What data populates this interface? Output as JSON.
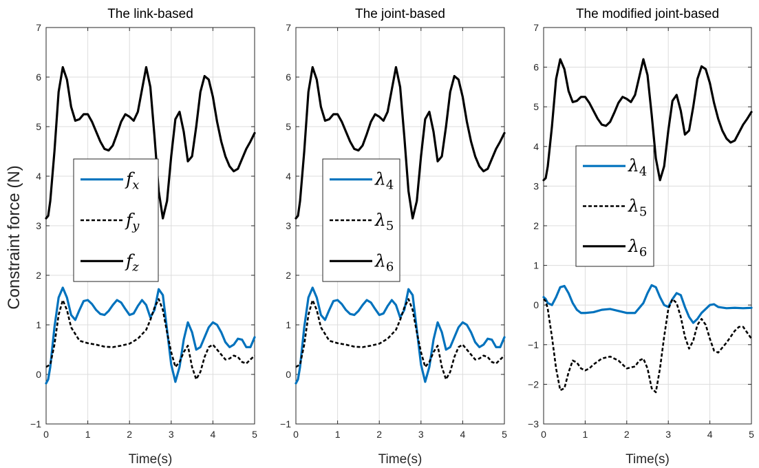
{
  "figure": {
    "ylabel": "Constraint force (N)",
    "colors": {
      "blue": "#0072BD",
      "black": "#000000",
      "grid": "#dcdcdc"
    }
  },
  "chart_data": [
    {
      "type": "line",
      "title": "The link-based",
      "xlabel": "Time(s)",
      "ylabel": "Constraint force (N)",
      "xlim": [
        0,
        5
      ],
      "ylim": [
        -1,
        7
      ],
      "xticks": [
        "0",
        "1",
        "2",
        "3",
        "4",
        "5"
      ],
      "yticks": [
        "−1",
        "0",
        "1",
        "2",
        "3",
        "4",
        "5",
        "6",
        "7"
      ],
      "grid": true,
      "legend_position": "center-left",
      "series": [
        {
          "name": "f_x",
          "color": "#0072BD",
          "style": "solid",
          "x": [
            0,
            0.05,
            0.1,
            0.2,
            0.3,
            0.4,
            0.5,
            0.6,
            0.7,
            0.8,
            0.9,
            1.0,
            1.1,
            1.2,
            1.3,
            1.4,
            1.5,
            1.6,
            1.7,
            1.8,
            1.9,
            2.0,
            2.1,
            2.2,
            2.3,
            2.4,
            2.5,
            2.6,
            2.7,
            2.8,
            2.9,
            3.0,
            3.1,
            3.2,
            3.3,
            3.4,
            3.5,
            3.6,
            3.7,
            3.8,
            3.9,
            4.0,
            4.1,
            4.2,
            4.3,
            4.4,
            4.5,
            4.6,
            4.7,
            4.8,
            4.9,
            5.0
          ],
          "y": [
            -0.18,
            -0.1,
            0.15,
            0.95,
            1.55,
            1.75,
            1.55,
            1.2,
            1.1,
            1.3,
            1.48,
            1.5,
            1.42,
            1.3,
            1.22,
            1.2,
            1.28,
            1.4,
            1.5,
            1.45,
            1.32,
            1.2,
            1.23,
            1.38,
            1.5,
            1.4,
            1.15,
            1.3,
            1.72,
            1.6,
            0.9,
            0.2,
            -0.15,
            0.15,
            0.7,
            1.05,
            0.85,
            0.5,
            0.55,
            0.75,
            0.95,
            1.05,
            1.0,
            0.85,
            0.65,
            0.55,
            0.6,
            0.72,
            0.7,
            0.55,
            0.55,
            0.75
          ]
        },
        {
          "name": "f_y",
          "color": "#000000",
          "style": "dashed",
          "x": [
            0,
            0.1,
            0.2,
            0.3,
            0.4,
            0.5,
            0.6,
            0.8,
            1.0,
            1.2,
            1.4,
            1.6,
            1.8,
            2.0,
            2.2,
            2.4,
            2.5,
            2.6,
            2.7,
            2.8,
            2.9,
            3.0,
            3.1,
            3.2,
            3.3,
            3.4,
            3.5,
            3.6,
            3.7,
            3.8,
            3.9,
            4.0,
            4.1,
            4.2,
            4.3,
            4.4,
            4.5,
            4.6,
            4.7,
            4.8,
            4.9,
            5.0
          ],
          "y": [
            0.15,
            0.2,
            0.6,
            1.2,
            1.5,
            1.3,
            0.95,
            0.68,
            0.63,
            0.6,
            0.56,
            0.55,
            0.58,
            0.62,
            0.72,
            0.9,
            1.1,
            1.35,
            1.52,
            1.3,
            0.85,
            0.45,
            0.15,
            0.25,
            0.45,
            0.58,
            0.15,
            -0.1,
            0.05,
            0.35,
            0.55,
            0.6,
            0.5,
            0.4,
            0.3,
            0.32,
            0.38,
            0.35,
            0.25,
            0.22,
            0.3,
            0.38
          ]
        },
        {
          "name": "f_z",
          "color": "#000000",
          "style": "solid",
          "x": [
            0,
            0.05,
            0.1,
            0.2,
            0.3,
            0.4,
            0.5,
            0.6,
            0.7,
            0.8,
            0.9,
            1.0,
            1.1,
            1.2,
            1.3,
            1.4,
            1.5,
            1.6,
            1.7,
            1.8,
            1.9,
            2.0,
            2.1,
            2.2,
            2.3,
            2.4,
            2.5,
            2.6,
            2.7,
            2.8,
            2.9,
            3.0,
            3.1,
            3.2,
            3.3,
            3.4,
            3.5,
            3.6,
            3.7,
            3.8,
            3.9,
            4.0,
            4.1,
            4.2,
            4.3,
            4.4,
            4.5,
            4.6,
            4.7,
            4.8,
            4.9,
            5.0
          ],
          "y": [
            3.15,
            3.2,
            3.5,
            4.5,
            5.7,
            6.2,
            5.95,
            5.4,
            5.12,
            5.15,
            5.25,
            5.25,
            5.1,
            4.9,
            4.7,
            4.55,
            4.52,
            4.62,
            4.85,
            5.1,
            5.25,
            5.2,
            5.12,
            5.3,
            5.75,
            6.2,
            5.8,
            4.8,
            3.7,
            3.15,
            3.5,
            4.4,
            5.15,
            5.3,
            4.9,
            4.3,
            4.4,
            5.0,
            5.7,
            6.02,
            5.95,
            5.6,
            5.1,
            4.7,
            4.4,
            4.2,
            4.1,
            4.15,
            4.35,
            4.55,
            4.7,
            4.87
          ]
        }
      ]
    },
    {
      "type": "line",
      "title": "The joint-based",
      "xlabel": "Time(s)",
      "xlim": [
        0,
        5
      ],
      "ylim": [
        -1,
        7
      ],
      "xticks": [
        "0",
        "1",
        "2",
        "3",
        "4",
        "5"
      ],
      "yticks": [
        "−1",
        "0",
        "1",
        "2",
        "3",
        "4",
        "5",
        "6",
        "7"
      ],
      "grid": true,
      "legend_position": "center-left",
      "series": [
        {
          "name": "λ_4",
          "color": "#0072BD",
          "style": "solid",
          "x": [
            0,
            0.05,
            0.1,
            0.2,
            0.3,
            0.4,
            0.5,
            0.6,
            0.7,
            0.8,
            0.9,
            1.0,
            1.1,
            1.2,
            1.3,
            1.4,
            1.5,
            1.6,
            1.7,
            1.8,
            1.9,
            2.0,
            2.1,
            2.2,
            2.3,
            2.4,
            2.5,
            2.6,
            2.7,
            2.8,
            2.9,
            3.0,
            3.1,
            3.2,
            3.3,
            3.4,
            3.5,
            3.6,
            3.7,
            3.8,
            3.9,
            4.0,
            4.1,
            4.2,
            4.3,
            4.4,
            4.5,
            4.6,
            4.7,
            4.8,
            4.9,
            5.0
          ],
          "y": [
            -0.18,
            -0.1,
            0.15,
            0.95,
            1.55,
            1.75,
            1.55,
            1.2,
            1.1,
            1.3,
            1.48,
            1.5,
            1.42,
            1.3,
            1.22,
            1.2,
            1.28,
            1.4,
            1.5,
            1.45,
            1.32,
            1.2,
            1.23,
            1.38,
            1.5,
            1.4,
            1.15,
            1.3,
            1.72,
            1.6,
            0.9,
            0.2,
            -0.15,
            0.15,
            0.7,
            1.05,
            0.85,
            0.5,
            0.55,
            0.75,
            0.95,
            1.05,
            1.0,
            0.85,
            0.65,
            0.55,
            0.6,
            0.72,
            0.7,
            0.55,
            0.55,
            0.75
          ]
        },
        {
          "name": "λ_5",
          "color": "#000000",
          "style": "dashed",
          "x": [
            0,
            0.1,
            0.2,
            0.3,
            0.4,
            0.5,
            0.6,
            0.8,
            1.0,
            1.2,
            1.4,
            1.6,
            1.8,
            2.0,
            2.2,
            2.4,
            2.5,
            2.6,
            2.7,
            2.8,
            2.9,
            3.0,
            3.1,
            3.2,
            3.3,
            3.4,
            3.5,
            3.6,
            3.7,
            3.8,
            3.9,
            4.0,
            4.1,
            4.2,
            4.3,
            4.4,
            4.5,
            4.6,
            4.7,
            4.8,
            4.9,
            5.0
          ],
          "y": [
            0.15,
            0.2,
            0.6,
            1.2,
            1.5,
            1.3,
            0.95,
            0.68,
            0.63,
            0.6,
            0.56,
            0.55,
            0.58,
            0.62,
            0.72,
            0.9,
            1.1,
            1.35,
            1.52,
            1.3,
            0.85,
            0.45,
            0.15,
            0.25,
            0.45,
            0.58,
            0.15,
            -0.1,
            0.05,
            0.35,
            0.55,
            0.6,
            0.5,
            0.4,
            0.3,
            0.32,
            0.38,
            0.35,
            0.25,
            0.22,
            0.3,
            0.38
          ]
        },
        {
          "name": "λ_6",
          "color": "#000000",
          "style": "solid",
          "x": [
            0,
            0.05,
            0.1,
            0.2,
            0.3,
            0.4,
            0.5,
            0.6,
            0.7,
            0.8,
            0.9,
            1.0,
            1.1,
            1.2,
            1.3,
            1.4,
            1.5,
            1.6,
            1.7,
            1.8,
            1.9,
            2.0,
            2.1,
            2.2,
            2.3,
            2.4,
            2.5,
            2.6,
            2.7,
            2.8,
            2.9,
            3.0,
            3.1,
            3.2,
            3.3,
            3.4,
            3.5,
            3.6,
            3.7,
            3.8,
            3.9,
            4.0,
            4.1,
            4.2,
            4.3,
            4.4,
            4.5,
            4.6,
            4.7,
            4.8,
            4.9,
            5.0
          ],
          "y": [
            3.15,
            3.2,
            3.5,
            4.5,
            5.7,
            6.2,
            5.95,
            5.4,
            5.12,
            5.15,
            5.25,
            5.25,
            5.1,
            4.9,
            4.7,
            4.55,
            4.52,
            4.62,
            4.85,
            5.1,
            5.25,
            5.2,
            5.12,
            5.3,
            5.75,
            6.2,
            5.8,
            4.8,
            3.7,
            3.15,
            3.5,
            4.4,
            5.15,
            5.3,
            4.9,
            4.3,
            4.4,
            5.0,
            5.7,
            6.02,
            5.95,
            5.6,
            5.1,
            4.7,
            4.4,
            4.2,
            4.1,
            4.15,
            4.35,
            4.55,
            4.7,
            4.87
          ]
        }
      ]
    },
    {
      "type": "line",
      "title": "The modified joint-based",
      "xlabel": "Time(s)",
      "xlim": [
        0,
        5
      ],
      "ylim": [
        -3,
        7
      ],
      "xticks": [
        "0",
        "1",
        "2",
        "3",
        "4",
        "5"
      ],
      "yticks": [
        "−3",
        "−2",
        "−1",
        "0",
        "1",
        "2",
        "3",
        "4",
        "5",
        "6",
        "7"
      ],
      "grid": true,
      "legend_position": "center-left",
      "series": [
        {
          "name": "λ_4",
          "color": "#0072BD",
          "style": "solid",
          "x": [
            0,
            0.05,
            0.1,
            0.2,
            0.3,
            0.4,
            0.5,
            0.6,
            0.7,
            0.8,
            0.9,
            1.0,
            1.2,
            1.4,
            1.6,
            1.8,
            2.0,
            2.2,
            2.4,
            2.5,
            2.6,
            2.7,
            2.8,
            2.9,
            3.0,
            3.1,
            3.2,
            3.3,
            3.4,
            3.5,
            3.6,
            3.7,
            3.8,
            3.9,
            4.0,
            4.1,
            4.2,
            4.4,
            4.6,
            4.8,
            5.0
          ],
          "y": [
            0.2,
            0.15,
            0.05,
            0.0,
            0.2,
            0.45,
            0.48,
            0.3,
            0.05,
            -0.12,
            -0.2,
            -0.2,
            -0.18,
            -0.12,
            -0.1,
            -0.15,
            -0.2,
            -0.2,
            0.05,
            0.3,
            0.5,
            0.45,
            0.2,
            0.0,
            -0.05,
            0.15,
            0.3,
            0.25,
            -0.05,
            -0.3,
            -0.45,
            -0.35,
            -0.2,
            -0.1,
            0.0,
            0.02,
            -0.05,
            -0.08,
            -0.07,
            -0.08,
            -0.07
          ]
        },
        {
          "name": "λ_5",
          "color": "#000000",
          "style": "dashed",
          "x": [
            0,
            0.05,
            0.1,
            0.2,
            0.3,
            0.4,
            0.5,
            0.6,
            0.7,
            0.8,
            0.9,
            1.0,
            1.1,
            1.2,
            1.4,
            1.6,
            1.8,
            2.0,
            2.2,
            2.3,
            2.4,
            2.5,
            2.6,
            2.7,
            2.8,
            2.9,
            3.0,
            3.1,
            3.2,
            3.3,
            3.4,
            3.5,
            3.6,
            3.7,
            3.8,
            3.9,
            4.0,
            4.1,
            4.2,
            4.4,
            4.6,
            4.7,
            4.8,
            4.9,
            5.0
          ],
          "y": [
            0.15,
            0.1,
            -0.1,
            -0.8,
            -1.6,
            -2.15,
            -2.1,
            -1.7,
            -1.4,
            -1.45,
            -1.6,
            -1.65,
            -1.6,
            -1.5,
            -1.35,
            -1.3,
            -1.4,
            -1.6,
            -1.55,
            -1.4,
            -1.35,
            -1.6,
            -2.1,
            -2.2,
            -1.6,
            -0.8,
            -0.1,
            0.15,
            0.05,
            -0.3,
            -0.8,
            -1.1,
            -0.9,
            -0.5,
            -0.35,
            -0.5,
            -0.85,
            -1.15,
            -1.2,
            -0.95,
            -0.65,
            -0.55,
            -0.55,
            -0.7,
            -0.85
          ]
        },
        {
          "name": "λ_6",
          "color": "#000000",
          "style": "solid",
          "x": [
            0,
            0.05,
            0.1,
            0.2,
            0.3,
            0.4,
            0.5,
            0.6,
            0.7,
            0.8,
            0.9,
            1.0,
            1.1,
            1.2,
            1.3,
            1.4,
            1.5,
            1.6,
            1.7,
            1.8,
            1.9,
            2.0,
            2.1,
            2.2,
            2.3,
            2.4,
            2.5,
            2.6,
            2.7,
            2.8,
            2.9,
            3.0,
            3.1,
            3.2,
            3.3,
            3.4,
            3.5,
            3.6,
            3.7,
            3.8,
            3.9,
            4.0,
            4.1,
            4.2,
            4.3,
            4.4,
            4.5,
            4.6,
            4.7,
            4.8,
            4.9,
            5.0
          ],
          "y": [
            3.15,
            3.2,
            3.5,
            4.5,
            5.7,
            6.2,
            5.95,
            5.4,
            5.12,
            5.15,
            5.25,
            5.25,
            5.1,
            4.9,
            4.7,
            4.55,
            4.52,
            4.62,
            4.85,
            5.1,
            5.25,
            5.2,
            5.12,
            5.3,
            5.75,
            6.2,
            5.8,
            4.8,
            3.7,
            3.15,
            3.5,
            4.4,
            5.15,
            5.3,
            4.9,
            4.3,
            4.4,
            5.0,
            5.7,
            6.02,
            5.95,
            5.6,
            5.1,
            4.7,
            4.4,
            4.2,
            4.1,
            4.15,
            4.35,
            4.55,
            4.7,
            4.87
          ]
        }
      ]
    }
  ]
}
